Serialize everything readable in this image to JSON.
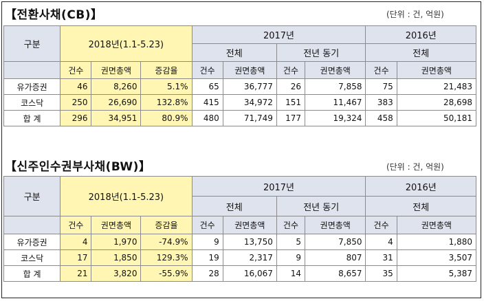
{
  "cb": {
    "title": "【전환사채(CB)】",
    "unit": "(단위 : 건, 억원)",
    "header": {
      "division": "구분",
      "period_2018": "2018년(1.1-5.23)",
      "year_2017": "2017년",
      "year_2016": "2016년",
      "total": "전체",
      "same_period_prev": "전년 동기",
      "total_2016": "전체",
      "cols": [
        "건수",
        "권면총액",
        "증감율",
        "건수",
        "권면총액",
        "건수",
        "권면총액",
        "건수",
        "권면총액"
      ]
    },
    "rows": [
      {
        "label": "유가증권",
        "cells": [
          "46",
          "8,260",
          "5.1%",
          "65",
          "36,777",
          "26",
          "7,858",
          "75",
          "21,483"
        ]
      },
      {
        "label": "코스닥",
        "cells": [
          "250",
          "26,690",
          "132.8%",
          "415",
          "34,972",
          "151",
          "11,467",
          "383",
          "28,698"
        ]
      },
      {
        "label": "합  계",
        "cells": [
          "296",
          "34,951",
          "80.9%",
          "480",
          "71,749",
          "177",
          "19,324",
          "458",
          "50,181"
        ]
      }
    ]
  },
  "bw": {
    "title": "【신주인수권부사채(BW)】",
    "unit": "(단위 : 건, 억원)",
    "header": {
      "division": "구분",
      "period_2018": "2018년(1.1-5.23)",
      "year_2017": "2017년",
      "year_2016": "2016년",
      "total": "전체",
      "same_period_prev": "전년 동기",
      "total_2016": "전체",
      "cols": [
        "건수",
        "권면총액",
        "증감율",
        "건수",
        "권면총액",
        "건수",
        "권면총액",
        "건수",
        "권면총액"
      ]
    },
    "rows": [
      {
        "label": "유가증권",
        "cells": [
          "4",
          "1,970",
          "-74.9%",
          "9",
          "13,750",
          "5",
          "7,850",
          "4",
          "1,880"
        ]
      },
      {
        "label": "코스닥",
        "cells": [
          "17",
          "1,850",
          "129.3%",
          "19",
          "2,317",
          "9",
          "807",
          "31",
          "3,507"
        ]
      },
      {
        "label": "합  계",
        "cells": [
          "21",
          "3,820",
          "-55.9%",
          "28",
          "16,067",
          "14",
          "8,657",
          "35",
          "5,387"
        ]
      }
    ]
  },
  "colors": {
    "header_bg": "#dfe3ee",
    "highlight_bg": "#fff6b3",
    "border": "#8a8a8a"
  }
}
